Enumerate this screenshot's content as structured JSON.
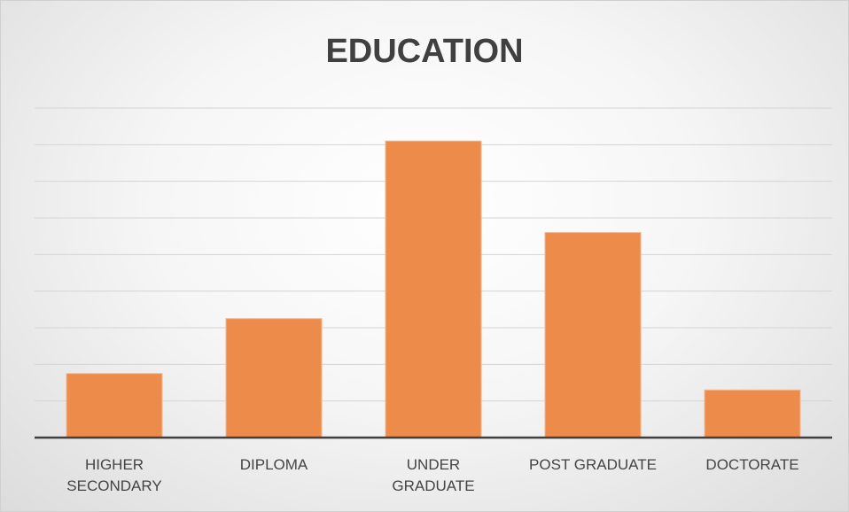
{
  "chart_data": {
    "type": "bar",
    "title": "EDUCATION",
    "categories": [
      "HIGHER\nSECONDARY",
      "DIPLOMA",
      "UNDER\nGRADUATE",
      "POST GRADUATE",
      "DOCTORATE"
    ],
    "values": [
      1.75,
      3.25,
      8.1,
      5.6,
      1.3
    ],
    "color": "#ed8b4a",
    "ylim": [
      0,
      9
    ],
    "yticks": [
      0,
      1,
      2,
      3,
      4,
      5,
      6,
      7,
      8,
      9
    ],
    "grid": true
  }
}
